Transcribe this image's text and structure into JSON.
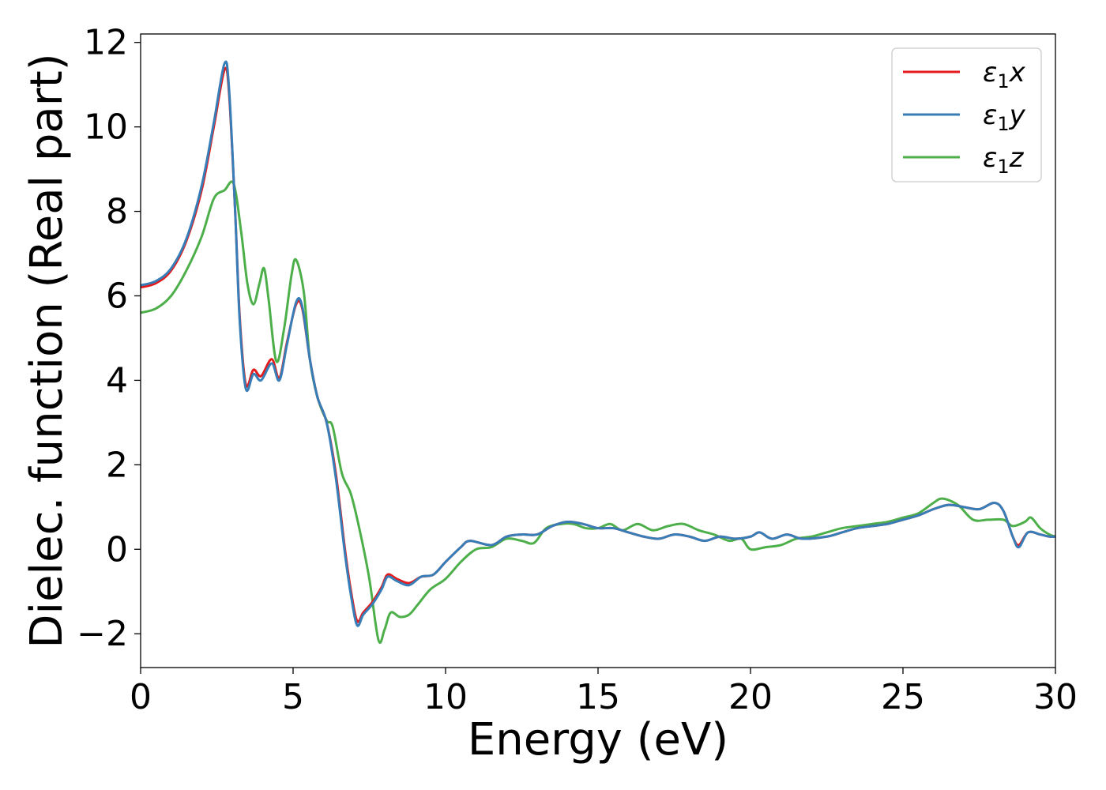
{
  "chart_data": {
    "type": "line",
    "xlabel": "Energy (eV)",
    "ylabel": "Dielec. function (Real part)",
    "xlim": [
      0,
      30
    ],
    "ylim": [
      -2.8,
      12.2
    ],
    "xticks": [
      0,
      5,
      10,
      15,
      20,
      25,
      30
    ],
    "xtick_labels": [
      "0",
      "5",
      "10",
      "15",
      "20",
      "25",
      "30"
    ],
    "yticks": [
      -2,
      0,
      2,
      4,
      6,
      8,
      10,
      12
    ],
    "ytick_labels": [
      "−2",
      "0",
      "2",
      "4",
      "6",
      "8",
      "10",
      "12"
    ],
    "grid": false,
    "legend_position": "top-right",
    "series": [
      {
        "name": "ε1x",
        "legend_base": "ε",
        "legend_sub": "1",
        "legend_tail": "x",
        "color": "#e41a1c",
        "points": [
          [
            0,
            6.2
          ],
          [
            0.5,
            6.3
          ],
          [
            1.0,
            6.6
          ],
          [
            1.5,
            7.3
          ],
          [
            2.0,
            8.5
          ],
          [
            2.4,
            10.0
          ],
          [
            2.75,
            11.35
          ],
          [
            2.9,
            10.8
          ],
          [
            3.1,
            8.0
          ],
          [
            3.25,
            5.5
          ],
          [
            3.45,
            3.9
          ],
          [
            3.7,
            4.25
          ],
          [
            3.95,
            4.1
          ],
          [
            4.3,
            4.5
          ],
          [
            4.55,
            4.05
          ],
          [
            4.8,
            4.9
          ],
          [
            5.1,
            5.8
          ],
          [
            5.3,
            5.7
          ],
          [
            5.55,
            4.5
          ],
          [
            5.8,
            3.6
          ],
          [
            6.1,
            3.0
          ],
          [
            6.4,
            1.8
          ],
          [
            6.7,
            0.0
          ],
          [
            6.9,
            -1.0
          ],
          [
            7.1,
            -1.7
          ],
          [
            7.3,
            -1.5
          ],
          [
            7.6,
            -1.25
          ],
          [
            7.9,
            -0.9
          ],
          [
            8.1,
            -0.6
          ],
          [
            8.4,
            -0.7
          ],
          [
            8.8,
            -0.8
          ],
          [
            9.2,
            -0.65
          ],
          [
            9.6,
            -0.6
          ],
          [
            10.0,
            -0.3
          ],
          [
            10.5,
            0.05
          ],
          [
            10.8,
            0.2
          ],
          [
            11.5,
            0.1
          ],
          [
            12.0,
            0.3
          ],
          [
            12.5,
            0.35
          ],
          [
            13.0,
            0.35
          ],
          [
            13.5,
            0.55
          ],
          [
            14.0,
            0.65
          ],
          [
            14.5,
            0.6
          ],
          [
            15.0,
            0.5
          ],
          [
            15.5,
            0.5
          ],
          [
            16.0,
            0.4
          ],
          [
            16.5,
            0.3
          ],
          [
            17.0,
            0.25
          ],
          [
            17.5,
            0.35
          ],
          [
            18.0,
            0.3
          ],
          [
            18.5,
            0.2
          ],
          [
            19.0,
            0.3
          ],
          [
            19.5,
            0.25
          ],
          [
            20.0,
            0.3
          ],
          [
            20.3,
            0.4
          ],
          [
            20.7,
            0.25
          ],
          [
            21.2,
            0.35
          ],
          [
            21.7,
            0.25
          ],
          [
            22.5,
            0.3
          ],
          [
            23.0,
            0.4
          ],
          [
            23.5,
            0.5
          ],
          [
            24.0,
            0.55
          ],
          [
            24.5,
            0.6
          ],
          [
            25.0,
            0.7
          ],
          [
            25.5,
            0.8
          ],
          [
            26.0,
            0.95
          ],
          [
            26.5,
            1.05
          ],
          [
            27.0,
            1.0
          ],
          [
            27.5,
            0.95
          ],
          [
            28.0,
            1.1
          ],
          [
            28.3,
            0.9
          ],
          [
            28.6,
            0.3
          ],
          [
            28.8,
            0.1
          ],
          [
            29.1,
            0.4
          ],
          [
            29.5,
            0.35
          ],
          [
            29.8,
            0.3
          ],
          [
            30.0,
            0.3
          ]
        ]
      },
      {
        "name": "ε1y",
        "legend_base": "ε",
        "legend_sub": "1",
        "legend_tail": "y",
        "color": "#377eb8",
        "points": [
          [
            0,
            6.25
          ],
          [
            0.5,
            6.35
          ],
          [
            1.0,
            6.65
          ],
          [
            1.5,
            7.35
          ],
          [
            2.0,
            8.6
          ],
          [
            2.4,
            10.1
          ],
          [
            2.75,
            11.5
          ],
          [
            2.9,
            10.9
          ],
          [
            3.1,
            8.0
          ],
          [
            3.25,
            5.4
          ],
          [
            3.45,
            3.8
          ],
          [
            3.7,
            4.15
          ],
          [
            3.95,
            4.0
          ],
          [
            4.3,
            4.4
          ],
          [
            4.55,
            4.0
          ],
          [
            4.8,
            4.85
          ],
          [
            5.1,
            5.85
          ],
          [
            5.3,
            5.75
          ],
          [
            5.55,
            4.5
          ],
          [
            5.8,
            3.6
          ],
          [
            6.1,
            3.0
          ],
          [
            6.4,
            1.7
          ],
          [
            6.7,
            -0.1
          ],
          [
            6.9,
            -1.1
          ],
          [
            7.1,
            -1.8
          ],
          [
            7.3,
            -1.55
          ],
          [
            7.6,
            -1.3
          ],
          [
            7.9,
            -0.95
          ],
          [
            8.1,
            -0.65
          ],
          [
            8.4,
            -0.75
          ],
          [
            8.8,
            -0.85
          ],
          [
            9.2,
            -0.65
          ],
          [
            9.6,
            -0.6
          ],
          [
            10.0,
            -0.3
          ],
          [
            10.5,
            0.05
          ],
          [
            10.8,
            0.2
          ],
          [
            11.5,
            0.1
          ],
          [
            12.0,
            0.3
          ],
          [
            12.5,
            0.35
          ],
          [
            13.0,
            0.35
          ],
          [
            13.5,
            0.55
          ],
          [
            14.0,
            0.65
          ],
          [
            14.5,
            0.6
          ],
          [
            15.0,
            0.5
          ],
          [
            15.5,
            0.5
          ],
          [
            16.0,
            0.4
          ],
          [
            16.5,
            0.3
          ],
          [
            17.0,
            0.25
          ],
          [
            17.5,
            0.35
          ],
          [
            18.0,
            0.3
          ],
          [
            18.5,
            0.2
          ],
          [
            19.0,
            0.3
          ],
          [
            19.5,
            0.25
          ],
          [
            20.0,
            0.3
          ],
          [
            20.3,
            0.4
          ],
          [
            20.7,
            0.25
          ],
          [
            21.2,
            0.35
          ],
          [
            21.7,
            0.25
          ],
          [
            22.5,
            0.3
          ],
          [
            23.0,
            0.4
          ],
          [
            23.5,
            0.5
          ],
          [
            24.0,
            0.55
          ],
          [
            24.5,
            0.6
          ],
          [
            25.0,
            0.7
          ],
          [
            25.5,
            0.8
          ],
          [
            26.0,
            0.95
          ],
          [
            26.5,
            1.05
          ],
          [
            27.0,
            1.0
          ],
          [
            27.5,
            0.95
          ],
          [
            28.0,
            1.1
          ],
          [
            28.3,
            0.9
          ],
          [
            28.6,
            0.3
          ],
          [
            28.8,
            0.05
          ],
          [
            29.1,
            0.4
          ],
          [
            29.5,
            0.35
          ],
          [
            29.8,
            0.3
          ],
          [
            30.0,
            0.3
          ]
        ]
      },
      {
        "name": "ε1z",
        "legend_base": "ε",
        "legend_sub": "1",
        "legend_tail": "z",
        "color": "#4daf4a",
        "points": [
          [
            0,
            5.6
          ],
          [
            0.5,
            5.7
          ],
          [
            1.0,
            6.0
          ],
          [
            1.5,
            6.6
          ],
          [
            2.0,
            7.4
          ],
          [
            2.4,
            8.3
          ],
          [
            2.75,
            8.5
          ],
          [
            3.05,
            8.65
          ],
          [
            3.3,
            7.5
          ],
          [
            3.5,
            6.3
          ],
          [
            3.7,
            5.8
          ],
          [
            3.9,
            6.3
          ],
          [
            4.05,
            6.65
          ],
          [
            4.2,
            5.9
          ],
          [
            4.45,
            4.45
          ],
          [
            4.7,
            5.2
          ],
          [
            4.95,
            6.5
          ],
          [
            5.1,
            6.85
          ],
          [
            5.35,
            6.1
          ],
          [
            5.55,
            4.5
          ],
          [
            5.8,
            3.6
          ],
          [
            6.1,
            3.05
          ],
          [
            6.3,
            2.9
          ],
          [
            6.6,
            1.8
          ],
          [
            6.9,
            1.3
          ],
          [
            7.2,
            0.4
          ],
          [
            7.5,
            -0.7
          ],
          [
            7.8,
            -2.15
          ],
          [
            8.0,
            -1.9
          ],
          [
            8.2,
            -1.5
          ],
          [
            8.5,
            -1.6
          ],
          [
            8.8,
            -1.55
          ],
          [
            9.1,
            -1.3
          ],
          [
            9.5,
            -0.95
          ],
          [
            10.0,
            -0.7
          ],
          [
            10.5,
            -0.3
          ],
          [
            11.0,
            0.0
          ],
          [
            11.5,
            0.05
          ],
          [
            12.0,
            0.25
          ],
          [
            12.5,
            0.2
          ],
          [
            12.9,
            0.15
          ],
          [
            13.3,
            0.5
          ],
          [
            13.8,
            0.6
          ],
          [
            14.2,
            0.6
          ],
          [
            14.6,
            0.5
          ],
          [
            15.0,
            0.5
          ],
          [
            15.4,
            0.6
          ],
          [
            15.8,
            0.45
          ],
          [
            16.3,
            0.6
          ],
          [
            16.8,
            0.45
          ],
          [
            17.3,
            0.55
          ],
          [
            17.8,
            0.6
          ],
          [
            18.3,
            0.45
          ],
          [
            18.8,
            0.35
          ],
          [
            19.3,
            0.2
          ],
          [
            19.7,
            0.25
          ],
          [
            20.0,
            0.0
          ],
          [
            20.5,
            0.05
          ],
          [
            21.0,
            0.1
          ],
          [
            21.5,
            0.25
          ],
          [
            22.0,
            0.3
          ],
          [
            22.5,
            0.4
          ],
          [
            23.0,
            0.5
          ],
          [
            23.5,
            0.55
          ],
          [
            24.0,
            0.6
          ],
          [
            24.5,
            0.65
          ],
          [
            25.0,
            0.75
          ],
          [
            25.5,
            0.85
          ],
          [
            26.0,
            1.1
          ],
          [
            26.3,
            1.2
          ],
          [
            26.8,
            1.05
          ],
          [
            27.3,
            0.7
          ],
          [
            27.8,
            0.7
          ],
          [
            28.3,
            0.7
          ],
          [
            28.6,
            0.55
          ],
          [
            29.0,
            0.65
          ],
          [
            29.2,
            0.75
          ],
          [
            29.5,
            0.5
          ],
          [
            29.8,
            0.35
          ],
          [
            30.0,
            0.3
          ]
        ]
      }
    ]
  }
}
